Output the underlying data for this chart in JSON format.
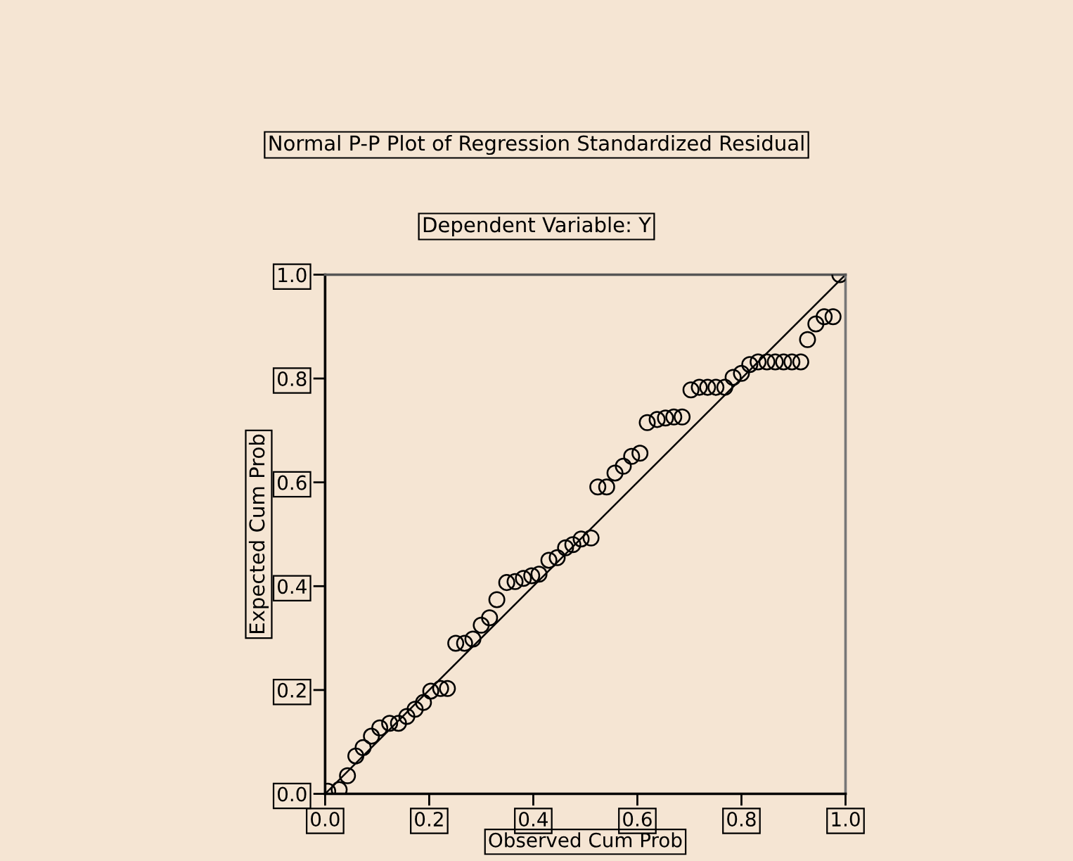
{
  "chart_data": {
    "type": "scatter",
    "title": "Normal P-P Plot of Regression Standardized Residual",
    "subtitle": "Dependent Variable: Y",
    "xlabel": "Observed Cum Prob",
    "ylabel": "Expected Cum Prob",
    "xlim": [
      0.0,
      1.0
    ],
    "ylim": [
      0.0,
      1.0
    ],
    "xticks": [
      {
        "value": 0.0,
        "label": "0.0"
      },
      0.2,
      0.4,
      0.6,
      0.8,
      {
        "value": 1.0,
        "label": "1.0"
      }
    ],
    "yticks": [
      {
        "value": 0.0,
        "label": "0.0"
      },
      0.2,
      0.4,
      0.6,
      0.8,
      {
        "value": 1.0,
        "label": "1.0"
      }
    ],
    "grid": false,
    "marker": "circle",
    "series": [
      {
        "color": "#000000",
        "x": [
          0.005,
          0.027,
          0.043,
          0.059,
          0.073,
          0.089,
          0.105,
          0.124,
          0.141,
          0.157,
          0.173,
          0.189,
          0.203,
          0.222,
          0.235,
          0.251,
          0.268,
          0.284,
          0.3,
          0.316,
          0.33,
          0.349,
          0.365,
          0.381,
          0.397,
          0.411,
          0.43,
          0.446,
          0.462,
          0.476,
          0.492,
          0.511,
          0.524,
          0.541,
          0.557,
          0.573,
          0.589,
          0.605,
          0.619,
          0.638,
          0.654,
          0.67,
          0.686,
          0.703,
          0.719,
          0.735,
          0.751,
          0.768,
          0.784,
          0.8,
          0.816,
          0.832,
          0.849,
          0.865,
          0.881,
          0.897,
          0.914,
          0.927,
          0.943,
          0.959,
          0.976,
          0.989
        ],
        "values": [
          0.005,
          0.008,
          0.035,
          0.073,
          0.089,
          0.111,
          0.127,
          0.136,
          0.136,
          0.149,
          0.163,
          0.176,
          0.198,
          0.203,
          0.203,
          0.29,
          0.29,
          0.298,
          0.325,
          0.339,
          0.374,
          0.407,
          0.409,
          0.415,
          0.42,
          0.423,
          0.45,
          0.455,
          0.474,
          0.48,
          0.491,
          0.493,
          0.591,
          0.591,
          0.618,
          0.631,
          0.65,
          0.656,
          0.715,
          0.721,
          0.724,
          0.726,
          0.726,
          0.778,
          0.783,
          0.783,
          0.783,
          0.783,
          0.802,
          0.81,
          0.827,
          0.832,
          0.832,
          0.832,
          0.832,
          0.832,
          0.832,
          0.875,
          0.905,
          0.919,
          0.919,
          1.0
        ]
      },
      {
        "type": "line",
        "color": "#000000",
        "marker": "none",
        "x": [
          0.0,
          1.0
        ],
        "values": [
          0.0,
          1.0
        ]
      }
    ]
  }
}
